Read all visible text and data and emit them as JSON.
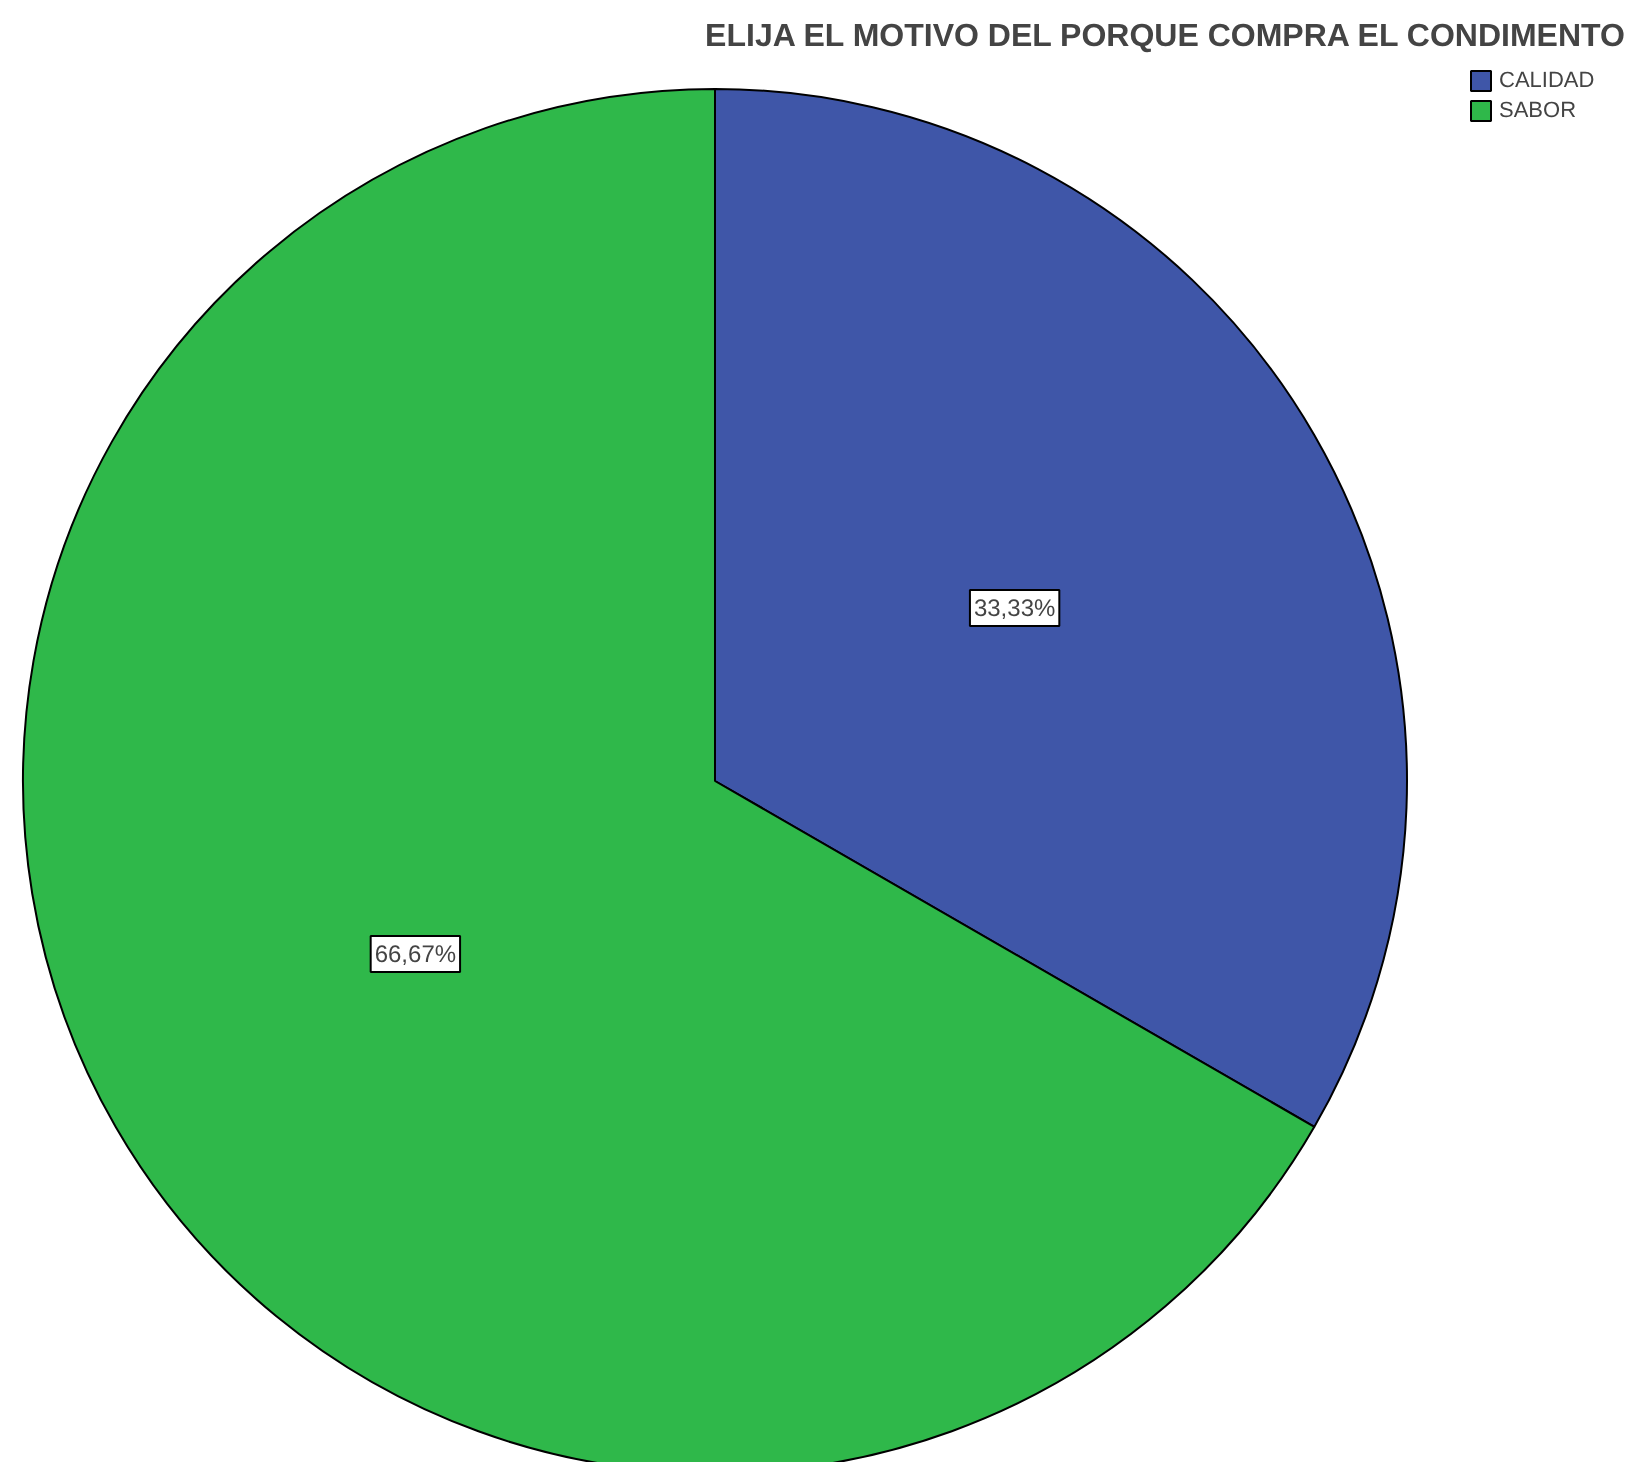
{
  "chart_data": {
    "type": "pie",
    "title": "ELIJA EL MOTIVO DEL PORQUE COMPRA EL CONDIMENTO",
    "categories": [
      "CALIDAD",
      "SABOR"
    ],
    "values": [
      33.33,
      66.67
    ],
    "colors": [
      "#3f56a8",
      "#2fb84a"
    ],
    "value_labels": [
      "33,33%",
      "66,67%"
    ],
    "legend": "top right"
  }
}
